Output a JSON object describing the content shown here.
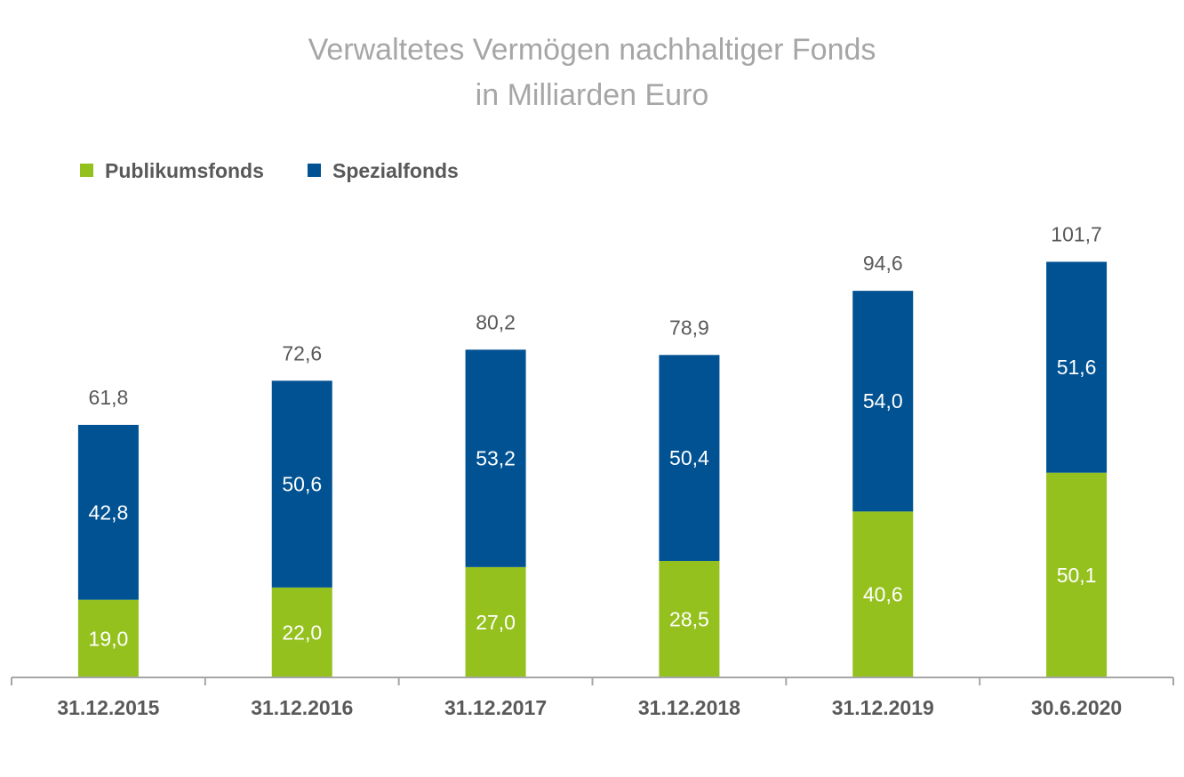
{
  "chart_data": {
    "type": "bar",
    "stacked": true,
    "title": "Verwaltetes Vermögen nachhaltiger Fonds",
    "subtitle": "in Milliarden Euro",
    "categories": [
      "31.12.2015",
      "31.12.2016",
      "31.12.2017",
      "31.12.2018",
      "31.12.2019",
      "30.6.2020"
    ],
    "series": [
      {
        "name": "Publikumsfonds",
        "color": "#95c11f",
        "values": [
          19.0,
          22.0,
          27.0,
          28.5,
          40.6,
          50.1
        ],
        "labels": [
          "19,0",
          "22,0",
          "27,0",
          "28,5",
          "40,6",
          "50,1"
        ]
      },
      {
        "name": "Spezialfonds",
        "color": "#005293",
        "values": [
          42.8,
          50.6,
          53.2,
          50.4,
          54.0,
          51.6
        ],
        "labels": [
          "42,8",
          "50,6",
          "53,2",
          "50,4",
          "54,0",
          "51,6"
        ]
      }
    ],
    "totals": [
      61.8,
      72.6,
      80.2,
      78.9,
      94.6,
      101.7
    ],
    "total_labels": [
      "61,8",
      "72,6",
      "80,2",
      "78,9",
      "94,6",
      "101,7"
    ],
    "ylim": [
      0,
      110
    ],
    "grid": false,
    "legend": "top-left"
  }
}
